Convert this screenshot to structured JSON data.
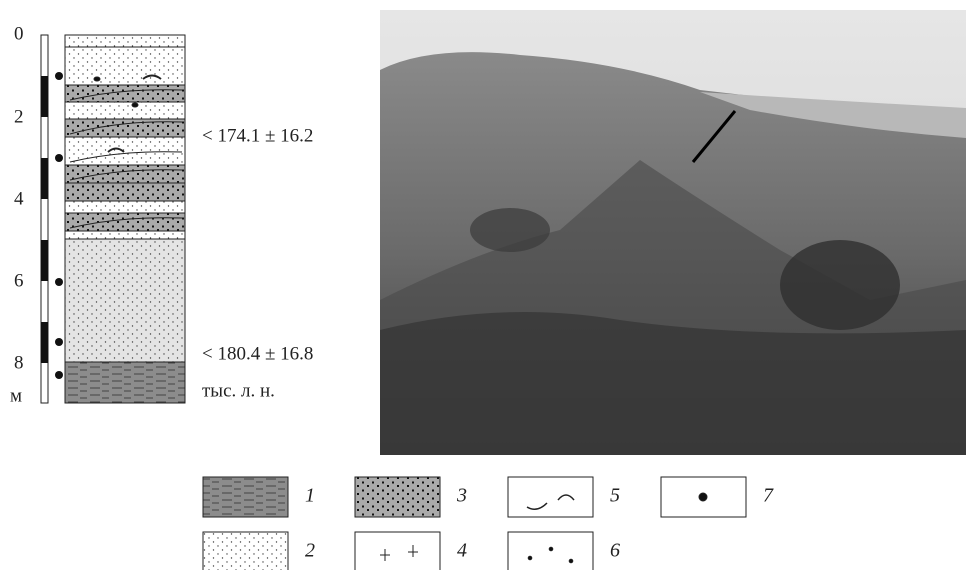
{
  "column": {
    "depth_labels": [
      0,
      2,
      4,
      6,
      8
    ],
    "unit": "м"
  },
  "ages": [
    "< 174.1 ± 16.2",
    "< 180.4 ± 16.8"
  ],
  "age_unit": "тыс. л. н.",
  "legend": [
    "1",
    "2",
    "3",
    "4",
    "5",
    "6",
    "7"
  ]
}
